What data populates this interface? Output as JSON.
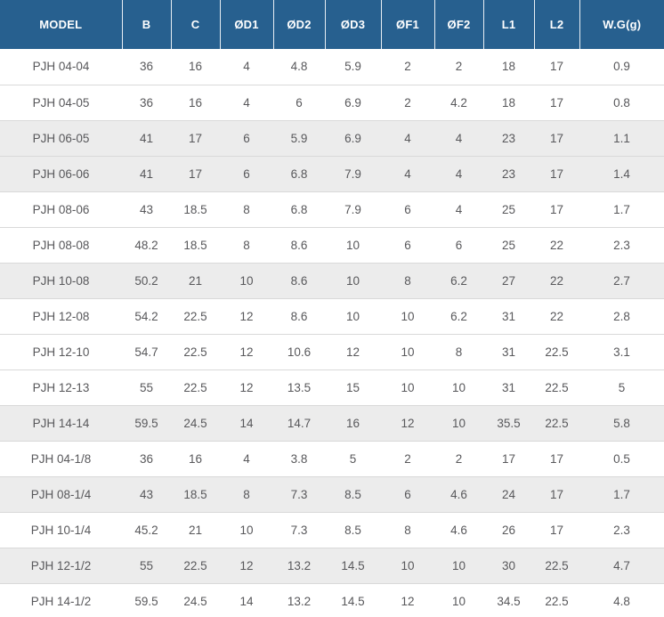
{
  "colors": {
    "header_bg": "#27608f",
    "header_text": "#ffffff",
    "header_separator": "#e8eef4",
    "row_shaded_bg": "#ececec",
    "row_border": "#d9d9d9",
    "cell_text": "#58585b",
    "page_bg": "#ffffff"
  },
  "chart_data": {
    "type": "table",
    "columns": [
      "MODEL",
      "B",
      "C",
      "ØD1",
      "ØD2",
      "ØD3",
      "ØF1",
      "ØF2",
      "L1",
      "L2",
      "W.G(g)"
    ],
    "rows": [
      {
        "cells": [
          "PJH 04-04",
          "36",
          "16",
          "4",
          "4.8",
          "5.9",
          "2",
          "2",
          "18",
          "17",
          "0.9"
        ],
        "shaded": false
      },
      {
        "cells": [
          "PJH 04-05",
          "36",
          "16",
          "4",
          "6",
          "6.9",
          "2",
          "4.2",
          "18",
          "17",
          "0.8"
        ],
        "shaded": false
      },
      {
        "cells": [
          "PJH 06-05",
          "41",
          "17",
          "6",
          "5.9",
          "6.9",
          "4",
          "4",
          "23",
          "17",
          "1.1"
        ],
        "shaded": true
      },
      {
        "cells": [
          "PJH 06-06",
          "41",
          "17",
          "6",
          "6.8",
          "7.9",
          "4",
          "4",
          "23",
          "17",
          "1.4"
        ],
        "shaded": true
      },
      {
        "cells": [
          "PJH 08-06",
          "43",
          "18.5",
          "8",
          "6.8",
          "7.9",
          "6",
          "4",
          "25",
          "17",
          "1.7"
        ],
        "shaded": false
      },
      {
        "cells": [
          "PJH 08-08",
          "48.2",
          "18.5",
          "8",
          "8.6",
          "10",
          "6",
          "6",
          "25",
          "22",
          "2.3"
        ],
        "shaded": false
      },
      {
        "cells": [
          "PJH 10-08",
          "50.2",
          "21",
          "10",
          "8.6",
          "10",
          "8",
          "6.2",
          "27",
          "22",
          "2.7"
        ],
        "shaded": true
      },
      {
        "cells": [
          "PJH 12-08",
          "54.2",
          "22.5",
          "12",
          "8.6",
          "10",
          "10",
          "6.2",
          "31",
          "22",
          "2.8"
        ],
        "shaded": false
      },
      {
        "cells": [
          "PJH 12-10",
          "54.7",
          "22.5",
          "12",
          "10.6",
          "12",
          "10",
          "8",
          "31",
          "22.5",
          "3.1"
        ],
        "shaded": false
      },
      {
        "cells": [
          "PJH 12-13",
          "55",
          "22.5",
          "12",
          "13.5",
          "15",
          "10",
          "10",
          "31",
          "22.5",
          "5"
        ],
        "shaded": false
      },
      {
        "cells": [
          "PJH 14-14",
          "59.5",
          "24.5",
          "14",
          "14.7",
          "16",
          "12",
          "10",
          "35.5",
          "22.5",
          "5.8"
        ],
        "shaded": true
      },
      {
        "cells": [
          "PJH 04-1/8",
          "36",
          "16",
          "4",
          "3.8",
          "5",
          "2",
          "2",
          "17",
          "17",
          "0.5"
        ],
        "shaded": false
      },
      {
        "cells": [
          "PJH 08-1/4",
          "43",
          "18.5",
          "8",
          "7.3",
          "8.5",
          "6",
          "4.6",
          "24",
          "17",
          "1.7"
        ],
        "shaded": true
      },
      {
        "cells": [
          "PJH 10-1/4",
          "45.2",
          "21",
          "10",
          "7.3",
          "8.5",
          "8",
          "4.6",
          "26",
          "17",
          "2.3"
        ],
        "shaded": false
      },
      {
        "cells": [
          "PJH 12-1/2",
          "55",
          "22.5",
          "12",
          "13.2",
          "14.5",
          "10",
          "10",
          "30",
          "22.5",
          "4.7"
        ],
        "shaded": true
      },
      {
        "cells": [
          "PJH 14-1/2",
          "59.5",
          "24.5",
          "14",
          "13.2",
          "14.5",
          "12",
          "10",
          "34.5",
          "22.5",
          "4.8"
        ],
        "shaded": false
      }
    ]
  }
}
